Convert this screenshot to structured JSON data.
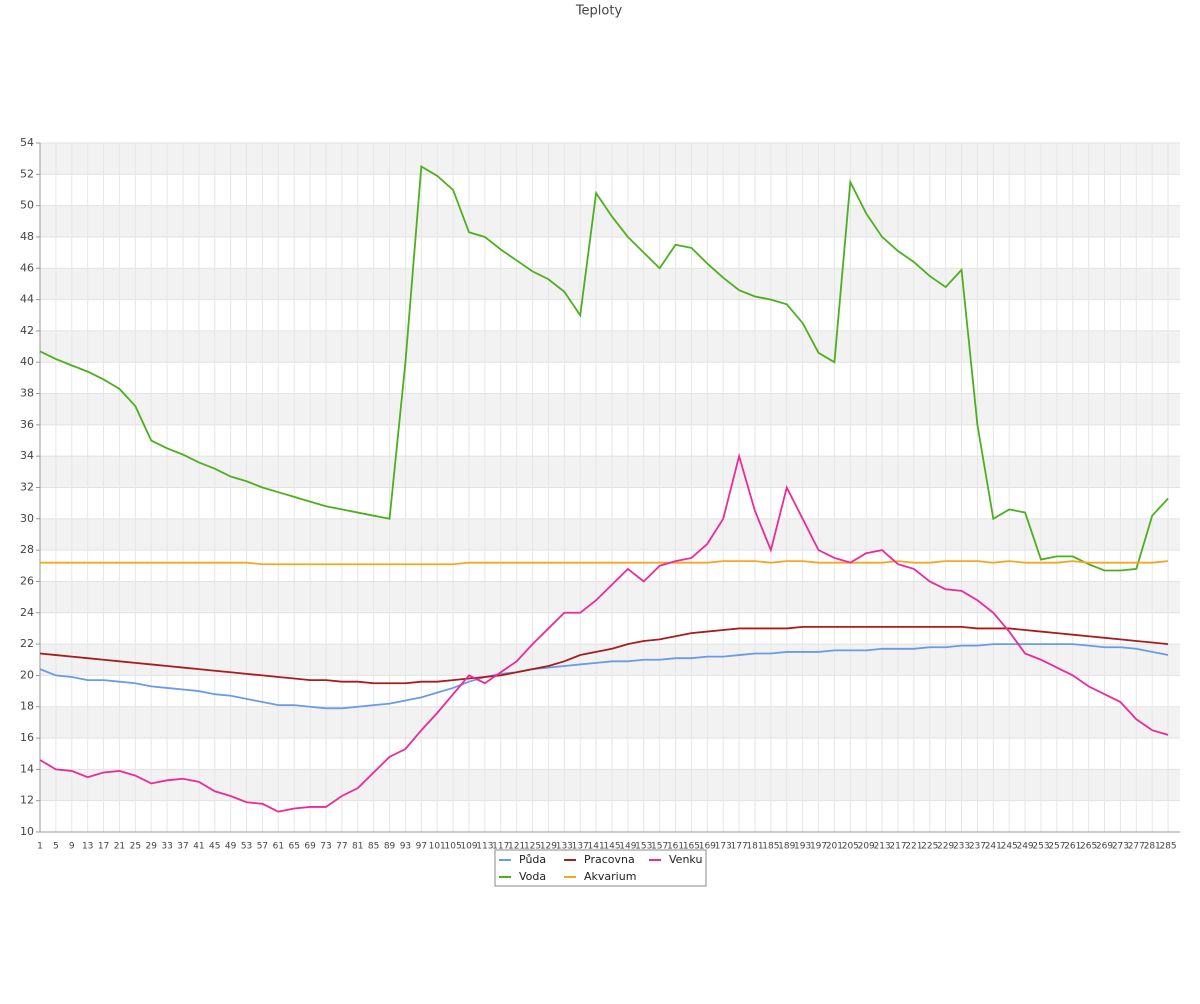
{
  "chart_data": {
    "type": "line",
    "title": "Teploty",
    "x": [
      1,
      5,
      9,
      13,
      17,
      21,
      25,
      29,
      33,
      37,
      41,
      45,
      49,
      53,
      57,
      61,
      65,
      69,
      73,
      77,
      81,
      85,
      89,
      93,
      97,
      101,
      105,
      109,
      113,
      117,
      121,
      125,
      129,
      133,
      137,
      141,
      145,
      149,
      153,
      157,
      161,
      165,
      169,
      173,
      177,
      181,
      185,
      189,
      193,
      197,
      201,
      205,
      209,
      213,
      217,
      221,
      225,
      229,
      233,
      237,
      241,
      245,
      249,
      253,
      257,
      261,
      265,
      269,
      273,
      277,
      281,
      285
    ],
    "xlim": [
      1,
      288
    ],
    "ylim": [
      10,
      54
    ],
    "yticks": [
      10,
      12,
      14,
      16,
      18,
      20,
      22,
      24,
      26,
      28,
      30,
      32,
      34,
      36,
      38,
      40,
      42,
      44,
      46,
      48,
      50,
      52,
      54
    ],
    "grid": true,
    "series": [
      {
        "name": "Půda",
        "color": "#6a9be8",
        "values": [
          20.4,
          20.0,
          19.9,
          19.7,
          19.7,
          19.6,
          19.5,
          19.3,
          19.2,
          19.1,
          19.0,
          18.8,
          18.7,
          18.5,
          18.3,
          18.1,
          18.1,
          18.0,
          17.9,
          17.9,
          18.0,
          18.1,
          18.2,
          18.4,
          18.6,
          18.9,
          19.2,
          19.6,
          19.9,
          20.1,
          20.2,
          20.4,
          20.5,
          20.6,
          20.7,
          20.8,
          20.9,
          20.9,
          21.0,
          21.0,
          21.1,
          21.1,
          21.2,
          21.2,
          21.3,
          21.4,
          21.4,
          21.5,
          21.5,
          21.5,
          21.6,
          21.6,
          21.6,
          21.7,
          21.7,
          21.7,
          21.8,
          21.8,
          21.9,
          21.9,
          22.0,
          22.0,
          22.0,
          22.0,
          22.0,
          22.0,
          21.9,
          21.8,
          21.8,
          21.7,
          21.5,
          21.3
        ]
      },
      {
        "name": "Voda",
        "color": "#4cb01e",
        "values": [
          40.7,
          40.2,
          39.8,
          39.4,
          38.9,
          38.3,
          37.2,
          35.0,
          34.5,
          34.1,
          33.6,
          33.2,
          32.7,
          32.4,
          32.0,
          31.7,
          31.4,
          31.1,
          30.8,
          30.6,
          30.4,
          30.2,
          30.0,
          40.0,
          52.5,
          51.9,
          51.0,
          48.3,
          48.0,
          47.2,
          46.5,
          45.8,
          45.3,
          44.5,
          43.0,
          50.8,
          49.3,
          48.0,
          47.0,
          46.0,
          47.5,
          47.3,
          46.3,
          45.4,
          44.6,
          44.2,
          44.0,
          43.7,
          42.5,
          40.6,
          40.0,
          51.5,
          49.5,
          48.0,
          47.1,
          46.4,
          45.5,
          44.8,
          45.9,
          36.0,
          30.0,
          30.6,
          30.4,
          27.4,
          27.6,
          27.6,
          27.1,
          26.7,
          26.7,
          26.8,
          30.2,
          31.3
        ]
      },
      {
        "name": "Pracovna",
        "color": "#a81c1c",
        "values": [
          21.4,
          21.3,
          21.2,
          21.1,
          21.0,
          20.9,
          20.8,
          20.7,
          20.6,
          20.5,
          20.4,
          20.3,
          20.2,
          20.1,
          20.0,
          19.9,
          19.8,
          19.7,
          19.7,
          19.6,
          19.6,
          19.5,
          19.5,
          19.5,
          19.6,
          19.6,
          19.7,
          19.8,
          19.9,
          20.0,
          20.2,
          20.4,
          20.6,
          20.9,
          21.3,
          21.5,
          21.7,
          22.0,
          22.2,
          22.3,
          22.5,
          22.7,
          22.8,
          22.9,
          23.0,
          23.0,
          23.0,
          23.0,
          23.1,
          23.1,
          23.1,
          23.1,
          23.1,
          23.1,
          23.1,
          23.1,
          23.1,
          23.1,
          23.1,
          23.0,
          23.0,
          23.0,
          22.9,
          22.8,
          22.7,
          22.6,
          22.5,
          22.4,
          22.3,
          22.2,
          22.1,
          22.0
        ]
      },
      {
        "name": "Akvarium",
        "color": "#f5a623",
        "values": [
          27.2,
          27.2,
          27.2,
          27.2,
          27.2,
          27.2,
          27.2,
          27.2,
          27.2,
          27.2,
          27.2,
          27.2,
          27.2,
          27.2,
          27.1,
          27.1,
          27.1,
          27.1,
          27.1,
          27.1,
          27.1,
          27.1,
          27.1,
          27.1,
          27.1,
          27.1,
          27.1,
          27.2,
          27.2,
          27.2,
          27.2,
          27.2,
          27.2,
          27.2,
          27.2,
          27.2,
          27.2,
          27.2,
          27.2,
          27.2,
          27.2,
          27.2,
          27.2,
          27.3,
          27.3,
          27.3,
          27.2,
          27.3,
          27.3,
          27.2,
          27.2,
          27.2,
          27.2,
          27.2,
          27.3,
          27.2,
          27.2,
          27.3,
          27.3,
          27.3,
          27.2,
          27.3,
          27.2,
          27.2,
          27.2,
          27.3,
          27.2,
          27.2,
          27.2,
          27.2,
          27.2,
          27.3
        ]
      },
      {
        "name": "Venku",
        "color": "#ec2a98",
        "values": [
          14.6,
          14.0,
          13.9,
          13.5,
          13.8,
          13.9,
          13.6,
          13.1,
          13.3,
          13.4,
          13.2,
          12.6,
          12.3,
          11.9,
          11.8,
          11.3,
          11.5,
          11.6,
          11.6,
          12.3,
          12.8,
          13.8,
          14.8,
          15.3,
          16.5,
          17.6,
          18.8,
          20.0,
          19.5,
          20.2,
          20.9,
          22.0,
          23.0,
          24.0,
          24.0,
          24.8,
          25.8,
          26.8,
          26.0,
          27.0,
          27.3,
          27.5,
          28.4,
          30.0,
          34.0,
          30.5,
          28.0,
          32.0,
          30.0,
          28.0,
          27.5,
          27.2,
          27.8,
          28.0,
          27.1,
          26.8,
          26.0,
          25.5,
          25.4,
          24.8,
          24.0,
          22.8,
          21.4,
          21.0,
          20.5,
          20.0,
          19.3,
          18.8,
          18.3,
          17.2,
          16.5,
          16.2
        ]
      }
    ]
  }
}
